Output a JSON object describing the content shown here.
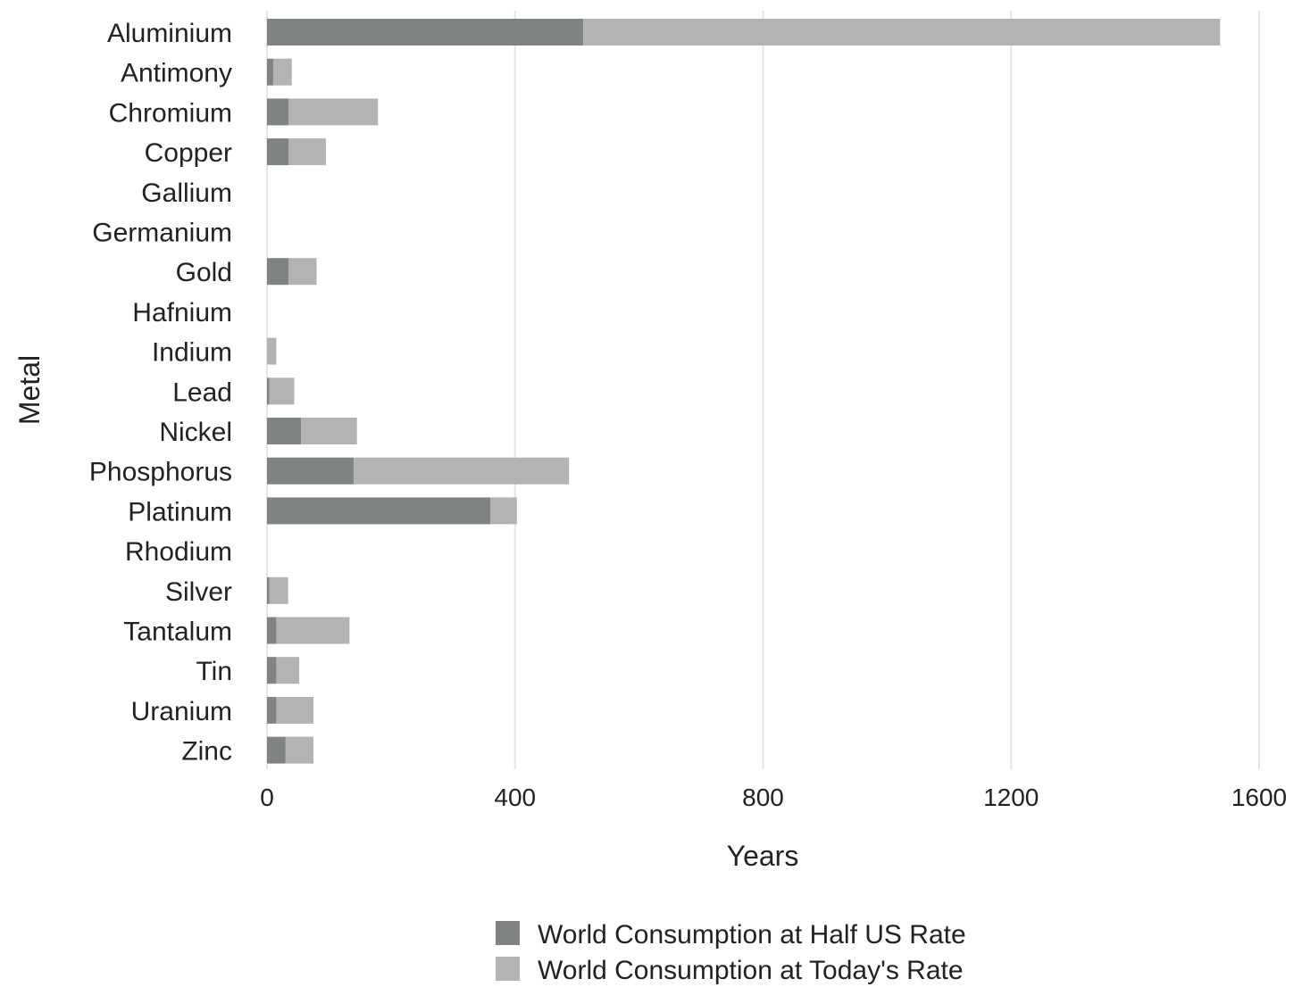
{
  "chart_data": {
    "type": "bar",
    "orientation": "horizontal",
    "stacked": true,
    "xlabel": "Years",
    "ylabel": "Metal",
    "xlim": [
      0,
      1600
    ],
    "xticks": [
      0,
      400,
      800,
      1200,
      1600
    ],
    "grid": "vertical",
    "legend_position": "bottom",
    "categories": [
      "Aluminium",
      "Antimony",
      "Chromium",
      "Copper",
      "Gallium",
      "Germanium",
      "Gold",
      "Hafnium",
      "Indium",
      "Lead",
      "Nickel",
      "Phosphorus",
      "Platinum",
      "Rhodium",
      "Silver",
      "Tantalum",
      "Tin",
      "Uranium",
      "Zinc"
    ],
    "series": [
      {
        "name": "World Consumption at Half US Rate",
        "color": "#7f8480",
        "values": [
          510,
          10,
          35,
          35,
          0,
          0,
          35,
          0,
          0,
          4,
          55,
          140,
          360,
          0,
          4,
          15,
          15,
          15,
          30
        ]
      },
      {
        "name": "World Consumption at Today's Rate",
        "color": "#b3b3b3",
        "values": [
          1027,
          30,
          144,
          60,
          0,
          0,
          45,
          0,
          15,
          40,
          90,
          347,
          43,
          0,
          30,
          118,
          37,
          60,
          45
        ]
      }
    ],
    "colors": {
      "grid": "#e6e6e6",
      "text": "#222222"
    }
  }
}
